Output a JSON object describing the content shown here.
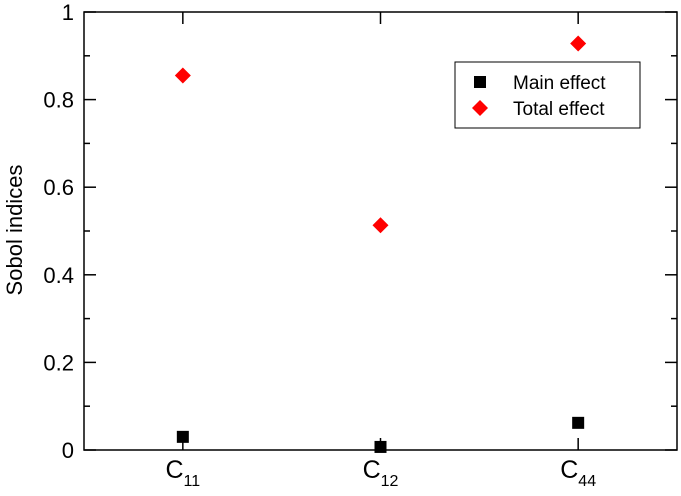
{
  "chart_data": {
    "type": "scatter",
    "title": "",
    "xlabel": "",
    "ylabel": "Sobol indices",
    "categories": [
      {
        "main": "C",
        "sub": "11"
      },
      {
        "main": "C",
        "sub": "12"
      },
      {
        "main": "C",
        "sub": "44"
      }
    ],
    "ylim": [
      0,
      1
    ],
    "yticks": [
      "0",
      "0.2",
      "0.4",
      "0.6",
      "0.8",
      "1"
    ],
    "grid": false,
    "legend_position": "top-right",
    "series": [
      {
        "name": "Main effect",
        "marker": "square",
        "color": "#000000",
        "values": [
          0.03,
          0.007,
          0.062
        ]
      },
      {
        "name": "Total effect",
        "marker": "diamond",
        "color": "#ff0000",
        "values": [
          0.855,
          0.513,
          0.928
        ]
      }
    ]
  }
}
